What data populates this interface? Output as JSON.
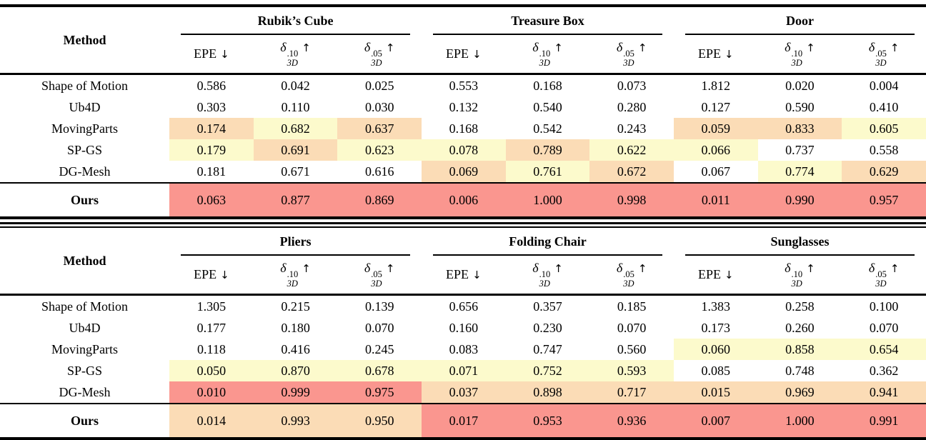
{
  "figure": {
    "kind": "benchmark-results-table",
    "background": "#ffffff"
  },
  "colors": {
    "best_red": "#FA968F",
    "second_orange": "#FBDCB6",
    "third_yellow": "#FCFACC",
    "rule_black": "#000000"
  },
  "header": {
    "method_label": "Method",
    "metrics": [
      {
        "name": "EPE",
        "sup": "",
        "sub": "",
        "arrow": "↓"
      },
      {
        "name": "δ",
        "sup": ".10",
        "sub": "3D",
        "arrow": "↑"
      },
      {
        "name": "δ",
        "sup": ".05",
        "sub": "3D",
        "arrow": "↑"
      }
    ]
  },
  "tables": [
    {
      "objects": [
        "Rubik’s Cube",
        "Treasure Box",
        "Door"
      ],
      "rows": [
        {
          "method": "Shape of Motion",
          "values": [
            "0.586",
            "0.042",
            "0.025",
            "0.553",
            "0.168",
            "0.073",
            "1.812",
            "0.020",
            "0.004"
          ],
          "hl": [
            "",
            "",
            "",
            "",
            "",
            "",
            "",
            "",
            ""
          ]
        },
        {
          "method": "Ub4D",
          "values": [
            "0.303",
            "0.110",
            "0.030",
            "0.132",
            "0.540",
            "0.280",
            "0.127",
            "0.590",
            "0.410"
          ],
          "hl": [
            "",
            "",
            "",
            "",
            "",
            "",
            "",
            "",
            ""
          ]
        },
        {
          "method": "MovingParts",
          "values": [
            "0.174",
            "0.682",
            "0.637",
            "0.168",
            "0.542",
            "0.243",
            "0.059",
            "0.833",
            "0.605"
          ],
          "hl": [
            "o",
            "y",
            "o",
            "",
            "",
            "",
            "o",
            "o",
            "y"
          ]
        },
        {
          "method": "SP-GS",
          "values": [
            "0.179",
            "0.691",
            "0.623",
            "0.078",
            "0.789",
            "0.622",
            "0.066",
            "0.737",
            "0.558"
          ],
          "hl": [
            "y",
            "o",
            "y",
            "y",
            "o",
            "y",
            "y",
            "",
            ""
          ]
        },
        {
          "method": "DG-Mesh",
          "values": [
            "0.181",
            "0.671",
            "0.616",
            "0.069",
            "0.761",
            "0.672",
            "0.067",
            "0.774",
            "0.629"
          ],
          "hl": [
            "",
            "",
            "",
            "o",
            "y",
            "o",
            "",
            "y",
            "o"
          ]
        }
      ],
      "ours": {
        "method": "Ours",
        "values": [
          "0.063",
          "0.877",
          "0.869",
          "0.006",
          "1.000",
          "0.998",
          "0.011",
          "0.990",
          "0.957"
        ],
        "hl": [
          "r",
          "r",
          "r",
          "r",
          "r",
          "r",
          "r",
          "r",
          "r"
        ]
      }
    },
    {
      "objects": [
        "Pliers",
        "Folding Chair",
        "Sunglasses"
      ],
      "rows": [
        {
          "method": "Shape of Motion",
          "values": [
            "1.305",
            "0.215",
            "0.139",
            "0.656",
            "0.357",
            "0.185",
            "1.383",
            "0.258",
            "0.100"
          ],
          "hl": [
            "",
            "",
            "",
            "",
            "",
            "",
            "",
            "",
            ""
          ]
        },
        {
          "method": "Ub4D",
          "values": [
            "0.177",
            "0.180",
            "0.070",
            "0.160",
            "0.230",
            "0.070",
            "0.173",
            "0.260",
            "0.070"
          ],
          "hl": [
            "",
            "",
            "",
            "",
            "",
            "",
            "",
            "",
            ""
          ]
        },
        {
          "method": "MovingParts",
          "values": [
            "0.118",
            "0.416",
            "0.245",
            "0.083",
            "0.747",
            "0.560",
            "0.060",
            "0.858",
            "0.654"
          ],
          "hl": [
            "",
            "",
            "",
            "",
            "",
            "",
            "y",
            "y",
            "y"
          ]
        },
        {
          "method": "SP-GS",
          "values": [
            "0.050",
            "0.870",
            "0.678",
            "0.071",
            "0.752",
            "0.593",
            "0.085",
            "0.748",
            "0.362"
          ],
          "hl": [
            "y",
            "y",
            "y",
            "y",
            "y",
            "y",
            "",
            "",
            ""
          ]
        },
        {
          "method": "DG-Mesh",
          "values": [
            "0.010",
            "0.999",
            "0.975",
            "0.037",
            "0.898",
            "0.717",
            "0.015",
            "0.969",
            "0.941"
          ],
          "hl": [
            "r",
            "r",
            "r",
            "o",
            "o",
            "o",
            "o",
            "o",
            "o"
          ]
        }
      ],
      "ours": {
        "method": "Ours",
        "values": [
          "0.014",
          "0.993",
          "0.950",
          "0.017",
          "0.953",
          "0.936",
          "0.007",
          "1.000",
          "0.991"
        ],
        "hl": [
          "o",
          "o",
          "o",
          "r",
          "r",
          "r",
          "r",
          "r",
          "r"
        ]
      }
    }
  ]
}
